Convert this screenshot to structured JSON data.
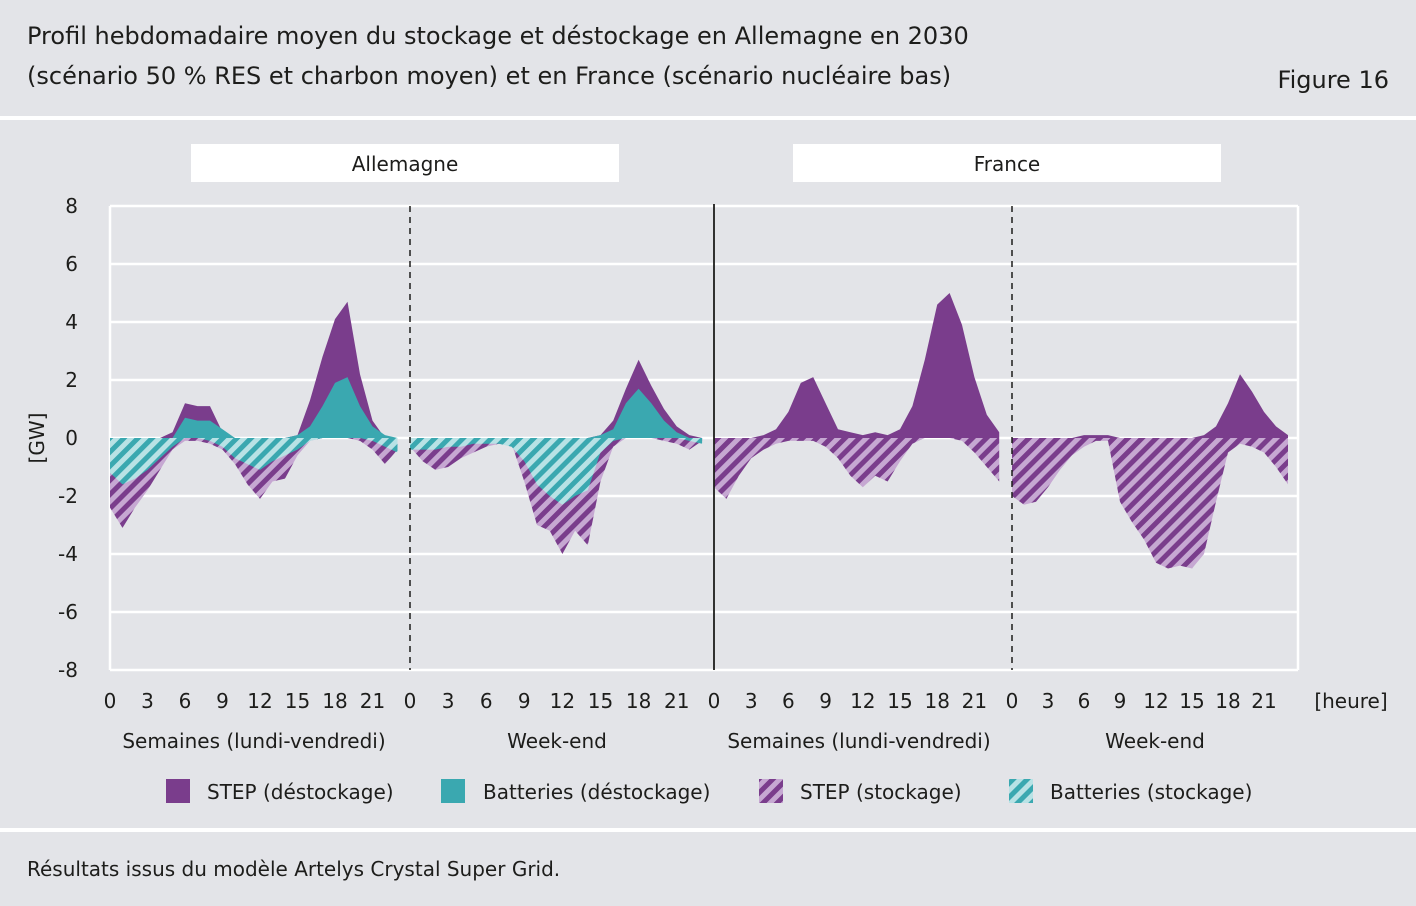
{
  "header": {
    "title_line1": "Profil hebdomadaire moyen du stockage et déstockage en Allemagne en 2030",
    "title_line2": "(scénario 50 % RES et charbon moyen) et en France (scénario nucléaire bas)",
    "figure_label": "Figure 16"
  },
  "footer": {
    "source": "Résultats issus du modèle Artelys Crystal Super Grid."
  },
  "colors": {
    "step": "#7a3d8c",
    "batteries": "#3aa8b0",
    "step_light": "#c6a8d2",
    "batteries_light": "#b8e2e5",
    "grid": "#ffffff",
    "background": "#e3e4e8"
  },
  "chart_data": {
    "type": "area",
    "ylabel": "[GW]",
    "xunit": "[heure]",
    "ylim": [
      -8,
      8
    ],
    "yticks": [
      "8",
      "6",
      "4",
      "2",
      "0",
      "-2",
      "-4",
      "-6",
      "-8"
    ],
    "xticks": [
      "0",
      "3",
      "6",
      "9",
      "12",
      "15",
      "18",
      "21"
    ],
    "countries": [
      "Allemagne",
      "France"
    ],
    "periods": [
      "Semaines (lundi-vendredi)",
      "Week-end",
      "Semaines (lundi-vendredi)",
      "Week-end"
    ],
    "legend": [
      {
        "label": "STEP (déstockage)",
        "key": "step_out"
      },
      {
        "label": "Batteries (déstockage)",
        "key": "bat_out"
      },
      {
        "label": "STEP (stockage)",
        "key": "step_in"
      },
      {
        "label": "Batteries (stockage)",
        "key": "bat_in"
      }
    ],
    "hours": [
      0,
      1,
      2,
      3,
      4,
      5,
      6,
      7,
      8,
      9,
      10,
      11,
      12,
      13,
      14,
      15,
      16,
      17,
      18,
      19,
      20,
      21,
      22,
      23
    ],
    "series": {
      "de_week": {
        "step_out": [
          0,
          0,
          0,
          0,
          0,
          0.2,
          1.2,
          1.1,
          1.1,
          0.2,
          0,
          0,
          0,
          0,
          0,
          0.1,
          1.3,
          2.8,
          4.1,
          4.7,
          2.2,
          0.6,
          0,
          0
        ],
        "bat_out": [
          0,
          0,
          0,
          0,
          0,
          0,
          0.7,
          0.6,
          0.6,
          0.3,
          0,
          0,
          0,
          0,
          0,
          0.1,
          0.4,
          1.1,
          1.9,
          2.1,
          1.1,
          0.4,
          0.1,
          0
        ],
        "step_in": [
          -2.4,
          -3.1,
          -2.4,
          -1.8,
          -1.1,
          -0.4,
          -0.1,
          -0.1,
          -0.2,
          -0.4,
          -0.9,
          -1.6,
          -2.1,
          -1.5,
          -1.4,
          -0.6,
          -0.1,
          0,
          0,
          0,
          -0.1,
          -0.4,
          -0.9,
          -0.4
        ],
        "bat_in": [
          -1.2,
          -1.6,
          -1.4,
          -1.1,
          -0.7,
          -0.3,
          0,
          0,
          -0.1,
          -0.3,
          -0.7,
          -0.9,
          -1.1,
          -0.8,
          -0.6,
          -0.4,
          -0.1,
          0,
          0,
          0,
          0,
          -0.1,
          -0.3,
          -0.5
        ]
      },
      "de_weekend": {
        "step_out": [
          0,
          0,
          0,
          0,
          0,
          0,
          0,
          0,
          0,
          0,
          0,
          0,
          0,
          0,
          0,
          0.1,
          0.6,
          1.7,
          2.7,
          1.8,
          1.0,
          0.4,
          0.1,
          0
        ],
        "bat_out": [
          0,
          0,
          0,
          0,
          0,
          0,
          0,
          0,
          0,
          0,
          0,
          0,
          0,
          0,
          0,
          0.1,
          0.3,
          1.2,
          1.7,
          1.2,
          0.6,
          0.2,
          0,
          0
        ],
        "step_in": [
          -0.3,
          -0.8,
          -1.1,
          -1.0,
          -0.7,
          -0.5,
          -0.3,
          -0.2,
          -0.2,
          -1.5,
          -3.0,
          -3.2,
          -4.0,
          -3.2,
          -3.7,
          -1.5,
          -0.3,
          0,
          0,
          0,
          -0.1,
          -0.2,
          -0.4,
          -0.1
        ],
        "bat_in": [
          -0.4,
          -0.4,
          -0.4,
          -0.3,
          -0.3,
          -0.2,
          -0.2,
          -0.2,
          -0.3,
          -0.8,
          -1.6,
          -2.0,
          -2.3,
          -2.0,
          -1.8,
          -0.5,
          -0.1,
          0,
          0,
          0,
          0,
          0,
          -0.1,
          -0.2
        ]
      },
      "fr_week": {
        "step_out": [
          0,
          0,
          0,
          0,
          0.1,
          0.3,
          0.9,
          1.9,
          2.1,
          1.2,
          0.3,
          0.2,
          0.1,
          0.2,
          0.1,
          0.3,
          1.1,
          2.7,
          4.6,
          5.0,
          3.9,
          2.1,
          0.8,
          0.2
        ],
        "bat_out": [
          0,
          0,
          0,
          0,
          0,
          0,
          0,
          0,
          0,
          0,
          0,
          0,
          0,
          0,
          0,
          0,
          0,
          0,
          0,
          0,
          0,
          0,
          0,
          0
        ],
        "step_in": [
          -1.7,
          -2.1,
          -1.3,
          -0.7,
          -0.4,
          -0.2,
          -0.1,
          -0.1,
          -0.1,
          -0.3,
          -0.7,
          -1.3,
          -1.7,
          -1.3,
          -1.5,
          -0.8,
          -0.2,
          0,
          0,
          0,
          -0.1,
          -0.5,
          -1.0,
          -1.5
        ],
        "bat_in": [
          0,
          0,
          0,
          0,
          0,
          0,
          0,
          0,
          0,
          0,
          0,
          0,
          0,
          0,
          0,
          0,
          0,
          0,
          0,
          0,
          0,
          0,
          0,
          0
        ]
      },
      "fr_weekend": {
        "step_out": [
          0,
          0,
          0,
          0,
          0,
          0,
          0.1,
          0.1,
          0.1,
          0,
          0,
          0,
          0,
          0,
          0,
          0,
          0.1,
          0.4,
          1.2,
          2.2,
          1.6,
          0.9,
          0.4,
          0.1
        ],
        "bat_out": [
          0,
          0,
          0,
          0,
          0,
          0,
          0,
          0,
          0,
          0,
          0,
          0,
          0,
          0,
          0,
          0,
          0,
          0,
          0,
          0,
          0,
          0,
          0,
          0
        ],
        "step_in": [
          -2.0,
          -2.3,
          -2.2,
          -1.7,
          -1.1,
          -0.6,
          -0.3,
          -0.1,
          -0.1,
          -2.2,
          -2.9,
          -3.5,
          -4.3,
          -4.5,
          -4.4,
          -4.5,
          -4.0,
          -2.2,
          -0.5,
          -0.2,
          -0.3,
          -0.5,
          -1.0,
          -1.6
        ],
        "bat_in": [
          0,
          0,
          0,
          0,
          0,
          0,
          0,
          0,
          0,
          0,
          0,
          0,
          0,
          0,
          0,
          0,
          0,
          0,
          0,
          0,
          0,
          0,
          0,
          0
        ]
      }
    }
  }
}
